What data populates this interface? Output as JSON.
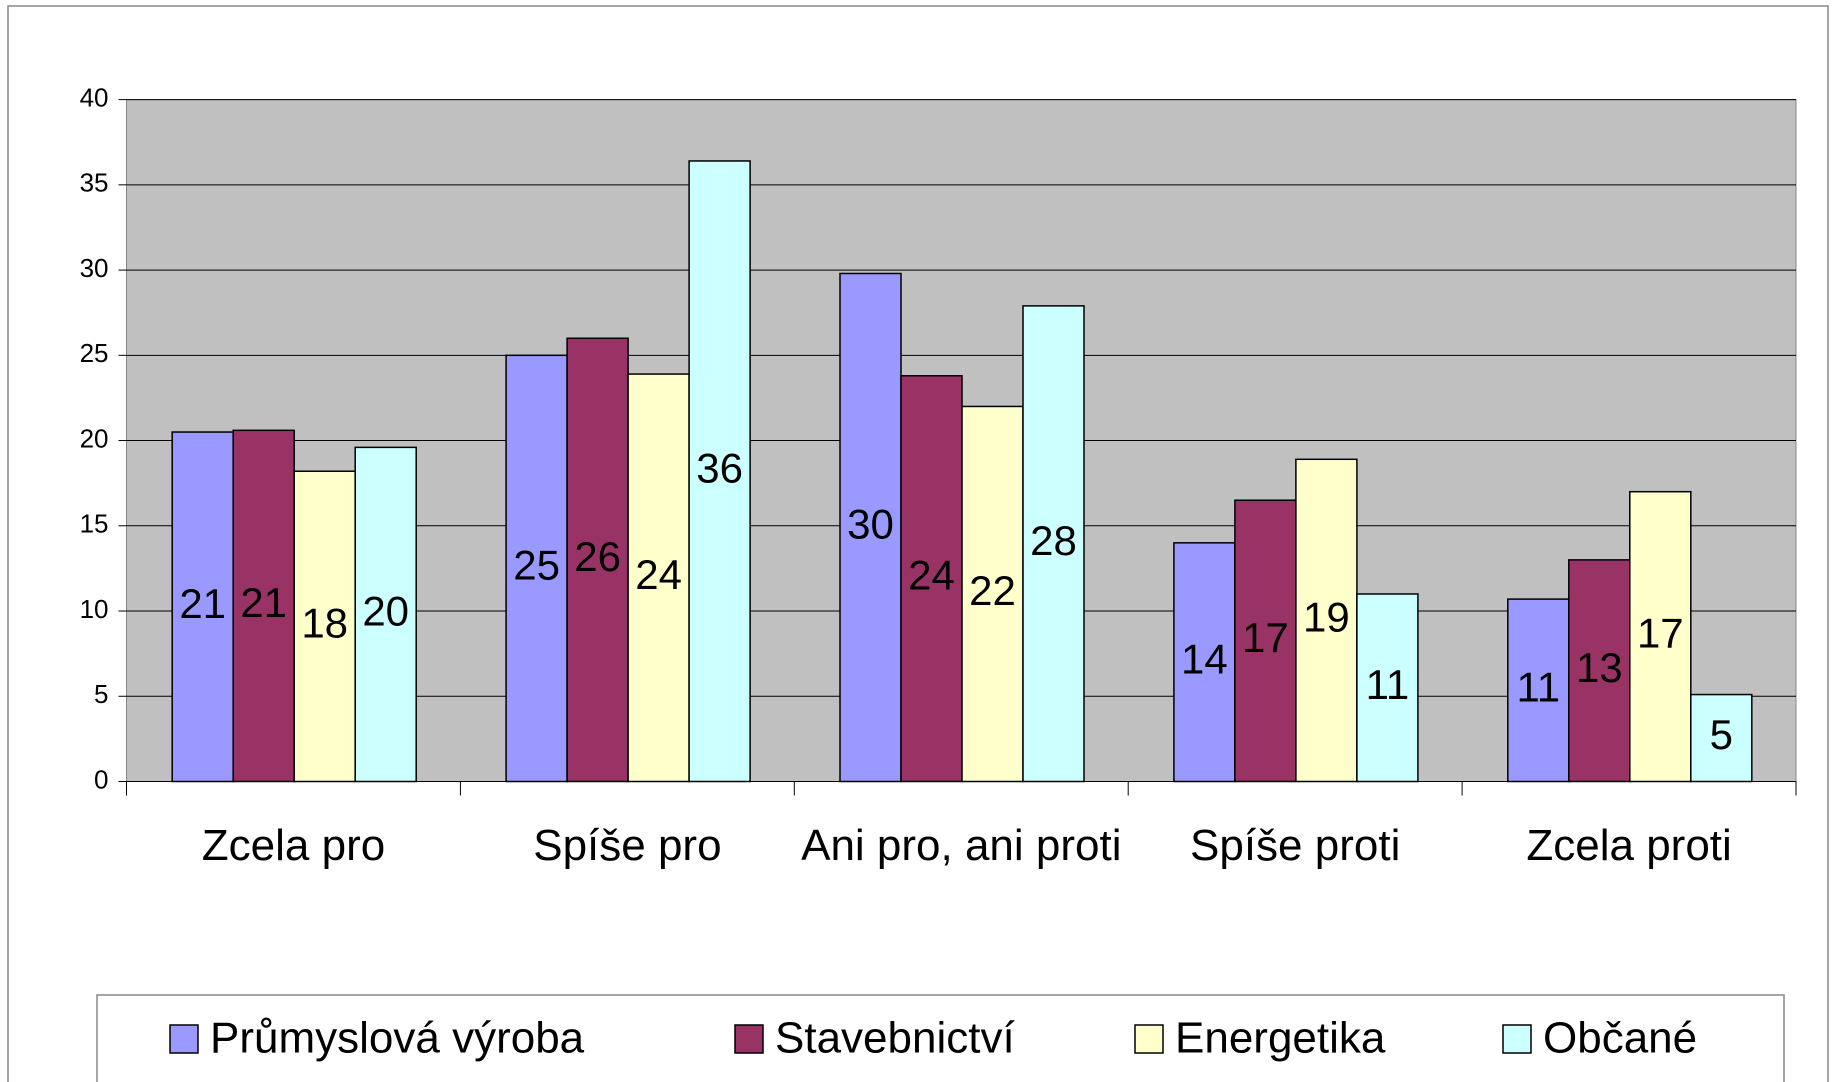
{
  "chart_data": {
    "type": "bar",
    "categories": [
      "Zcela pro",
      "Spíše pro",
      "Ani pro, ani proti",
      "Spíše proti",
      "Zcela proti"
    ],
    "series": [
      {
        "name": "Průmyslová výroba",
        "color": "#9999ff",
        "values": [
          20.5,
          25,
          29.8,
          14,
          10.7
        ],
        "value_labels": [
          "21",
          "25",
          "30",
          "14",
          "11"
        ]
      },
      {
        "name": "Stavebnictví",
        "color": "#993366",
        "values": [
          20.6,
          26,
          23.8,
          16.5,
          13
        ],
        "value_labels": [
          "21",
          "26",
          "24",
          "17",
          "13"
        ]
      },
      {
        "name": "Energetika",
        "color": "#ffffcc",
        "values": [
          18.2,
          23.9,
          22,
          18.9,
          17
        ],
        "value_labels": [
          "18",
          "24",
          "22",
          "19",
          "17"
        ]
      },
      {
        "name": "Občané",
        "color": "#ccffff",
        "values": [
          19.6,
          36.4,
          27.9,
          11,
          5.1
        ],
        "value_labels": [
          "20",
          "36",
          "28",
          "11",
          "5"
        ]
      }
    ],
    "ylim": [
      0,
      40
    ],
    "yticks": [
      0,
      5,
      10,
      15,
      20,
      25,
      30,
      35,
      40
    ],
    "grid": true,
    "legend": "bottom"
  }
}
